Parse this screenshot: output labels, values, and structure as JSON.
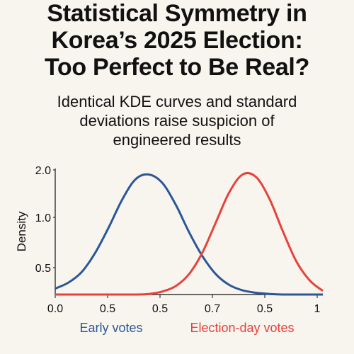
{
  "chart_data": {
    "type": "line",
    "title_lines": [
      "Statistical Symmetry in",
      "Korea’s 2025 Election:",
      "Too Perfect to Be Real?"
    ],
    "subtitle_lines": [
      "Identical KDE curves and standard",
      "deviations raise suspicion of",
      "engineered results"
    ],
    "xlabel": "",
    "ylabel": "Density",
    "x_tick_labels": [
      "0.0",
      "0.5",
      "0.5",
      "0.7",
      "0.5",
      "1"
    ],
    "y_tick_labels": [
      "0.5",
      "1.0",
      "2.0"
    ],
    "xlim": [
      0,
      1
    ],
    "ylim": [
      0,
      2.1
    ],
    "grid": false,
    "series": [
      {
        "name": "Early votes",
        "color": "#2b5797",
        "x": [
          0,
          0.05,
          0.1,
          0.15,
          0.2,
          0.25,
          0.3,
          0.35,
          0.4,
          0.45,
          0.5,
          0.55,
          0.6,
          0.65,
          0.7,
          0.75,
          0.8,
          0.85,
          0.9,
          0.95,
          1.0
        ],
        "y": [
          0.1,
          0.2,
          0.38,
          0.7,
          1.12,
          1.58,
          1.92,
          2.0,
          1.86,
          1.5,
          1.04,
          0.64,
          0.34,
          0.16,
          0.07,
          0.03,
          0.01,
          0.0,
          0.0,
          0.0,
          0.0
        ]
      },
      {
        "name": "Election-day votes",
        "color": "#e8413c",
        "x": [
          0,
          0.05,
          0.1,
          0.15,
          0.2,
          0.25,
          0.3,
          0.35,
          0.4,
          0.45,
          0.5,
          0.55,
          0.6,
          0.65,
          0.7,
          0.75,
          0.8,
          0.85,
          0.9,
          0.95,
          1.0
        ],
        "y": [
          0.0,
          0.0,
          0.0,
          0.0,
          0.0,
          0.0,
          0.0,
          0.01,
          0.05,
          0.14,
          0.34,
          0.7,
          1.2,
          1.7,
          2.0,
          1.96,
          1.6,
          1.06,
          0.56,
          0.24,
          0.06
        ]
      }
    ]
  }
}
